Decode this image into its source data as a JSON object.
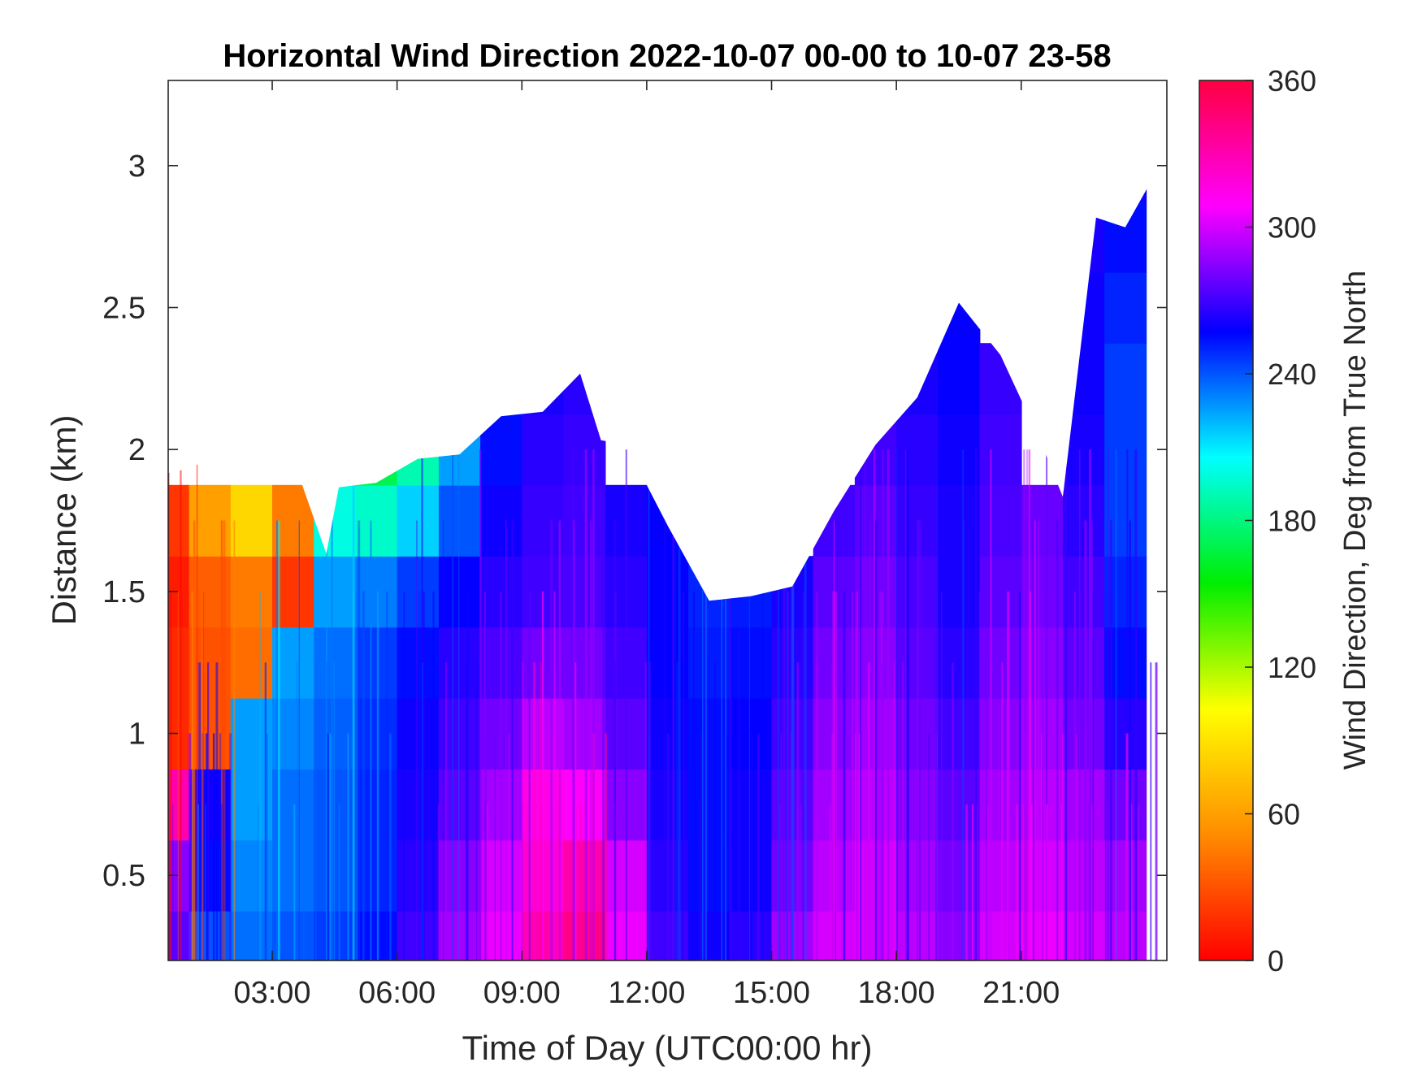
{
  "chart_data": {
    "type": "heatmap",
    "title": "Horizontal Wind Direction 2022-10-07 00-00 to 10-07 23-58",
    "xlabel": "Time of Day (UTC00:00 hr)",
    "ylabel": "Distance (km)",
    "colorbar_label": "Wind Direction, Deg from True North",
    "x_unit": "hours",
    "xlim": [
      0.5,
      24.5
    ],
    "ylim": [
      0.2,
      3.3
    ],
    "x_ticks": [
      3,
      6,
      9,
      12,
      15,
      18,
      21
    ],
    "x_tick_labels": [
      "03:00",
      "06:00",
      "09:00",
      "12:00",
      "15:00",
      "18:00",
      "21:00"
    ],
    "y_ticks": [
      0.5,
      1,
      1.5,
      2,
      2.5,
      3
    ],
    "y_tick_labels": [
      "0.5",
      "1",
      "1.5",
      "2",
      "2.5",
      "3"
    ],
    "colorbar_range": [
      0,
      360
    ],
    "colorbar_ticks": [
      0,
      60,
      120,
      180,
      240,
      300,
      360
    ],
    "colorbar_tick_labels": [
      "0",
      "60",
      "120",
      "180",
      "240",
      "300",
      "360"
    ],
    "colormap": [
      "#ff0000",
      "#ff8c00",
      "#ffff00",
      "#00ee00",
      "#00ffff",
      "#0000ff",
      "#ff00ff",
      "#ff0040"
    ],
    "grid": false,
    "data_top_km": {
      "x": [
        0.5,
        1.0,
        1.5,
        2.5,
        3.5,
        4.3,
        4.6,
        5.5,
        6.5,
        7.5,
        8.5,
        9.5,
        10.4,
        10.9,
        11.5,
        12.5,
        13.5,
        14.5,
        15.5,
        16.5,
        17.5,
        18.5,
        19.5,
        20.5,
        21.5,
        22.0,
        22.8,
        23.5,
        24.4
      ],
      "y": [
        1.9,
        1.95,
        1.95,
        1.95,
        1.95,
        1.65,
        1.85,
        1.9,
        1.95,
        2.0,
        2.1,
        2.15,
        2.25,
        2.05,
        2.0,
        1.75,
        1.45,
        1.5,
        1.5,
        1.8,
        2.0,
        2.2,
        2.5,
        2.35,
        2.0,
        1.85,
        2.8,
        2.8,
        3.0
      ]
    },
    "direction_deg": {
      "distance_km": [
        0.25,
        0.5,
        0.75,
        1.0,
        1.25,
        1.5,
        1.75,
        2.0,
        2.25,
        2.5,
        2.75,
        3.0
      ],
      "time_hr": [
        0.5,
        1.5,
        2.5,
        3.5,
        4.5,
        5.5,
        6.5,
        7.5,
        8.5,
        9.5,
        10.5,
        11.5,
        12.5,
        13.5,
        14.5,
        15.5,
        16.5,
        17.5,
        18.5,
        19.5,
        20.5,
        21.5,
        22.5,
        23.5
      ],
      "values": [
        [
          275,
          240,
          235,
          240,
          245,
          255,
          270,
          290,
          305,
          330,
          340,
          305,
          270,
          260,
          265,
          290,
          300,
          300,
          295,
          285,
          300,
          305,
          300,
          295
        ],
        [
          285,
          255,
          230,
          235,
          240,
          250,
          265,
          285,
          300,
          320,
          330,
          300,
          265,
          255,
          260,
          280,
          295,
          300,
          290,
          280,
          295,
          300,
          295,
          290
        ],
        [
          330,
          260,
          225,
          235,
          240,
          250,
          262,
          275,
          290,
          315,
          310,
          285,
          262,
          255,
          260,
          275,
          290,
          295,
          285,
          275,
          290,
          295,
          290,
          280
        ],
        [
          15,
          30,
          225,
          230,
          238,
          248,
          260,
          270,
          280,
          295,
          290,
          275,
          260,
          255,
          258,
          270,
          285,
          290,
          280,
          270,
          285,
          290,
          280,
          265
        ],
        [
          15,
          30,
          40,
          225,
          235,
          245,
          255,
          265,
          272,
          280,
          280,
          270,
          258,
          252,
          255,
          265,
          280,
          285,
          275,
          265,
          280,
          285,
          275,
          255
        ],
        [
          10,
          35,
          45,
          20,
          225,
          232,
          245,
          258,
          265,
          270,
          272,
          265,
          258,
          250,
          252,
          262,
          275,
          280,
          272,
          262,
          275,
          280,
          270,
          250
        ],
        [
          20,
          60,
          85,
          45,
          200,
          195,
          215,
          240,
          260,
          268,
          270,
          262,
          258,
          null,
          null,
          null,
          270,
          275,
          268,
          262,
          272,
          278,
          265,
          245
        ],
        [
          null,
          null,
          null,
          null,
          null,
          170,
          190,
          225,
          255,
          265,
          268,
          null,
          null,
          null,
          null,
          null,
          null,
          270,
          265,
          260,
          270,
          null,
          262,
          245
        ],
        [
          null,
          null,
          null,
          null,
          null,
          null,
          null,
          null,
          null,
          262,
          265,
          null,
          null,
          null,
          null,
          null,
          null,
          null,
          262,
          258,
          268,
          null,
          260,
          245
        ],
        [
          null,
          null,
          null,
          null,
          null,
          null,
          null,
          null,
          null,
          null,
          null,
          null,
          null,
          null,
          null,
          null,
          null,
          null,
          null,
          258,
          null,
          null,
          260,
          250
        ],
        [
          null,
          null,
          null,
          null,
          null,
          null,
          null,
          null,
          null,
          null,
          null,
          null,
          null,
          null,
          null,
          null,
          null,
          null,
          null,
          null,
          null,
          null,
          262,
          255
        ],
        [
          null,
          null,
          null,
          null,
          null,
          null,
          null,
          null,
          null,
          null,
          null,
          null,
          null,
          null,
          null,
          null,
          null,
          null,
          null,
          null,
          null,
          null,
          null,
          260
        ]
      ]
    }
  }
}
